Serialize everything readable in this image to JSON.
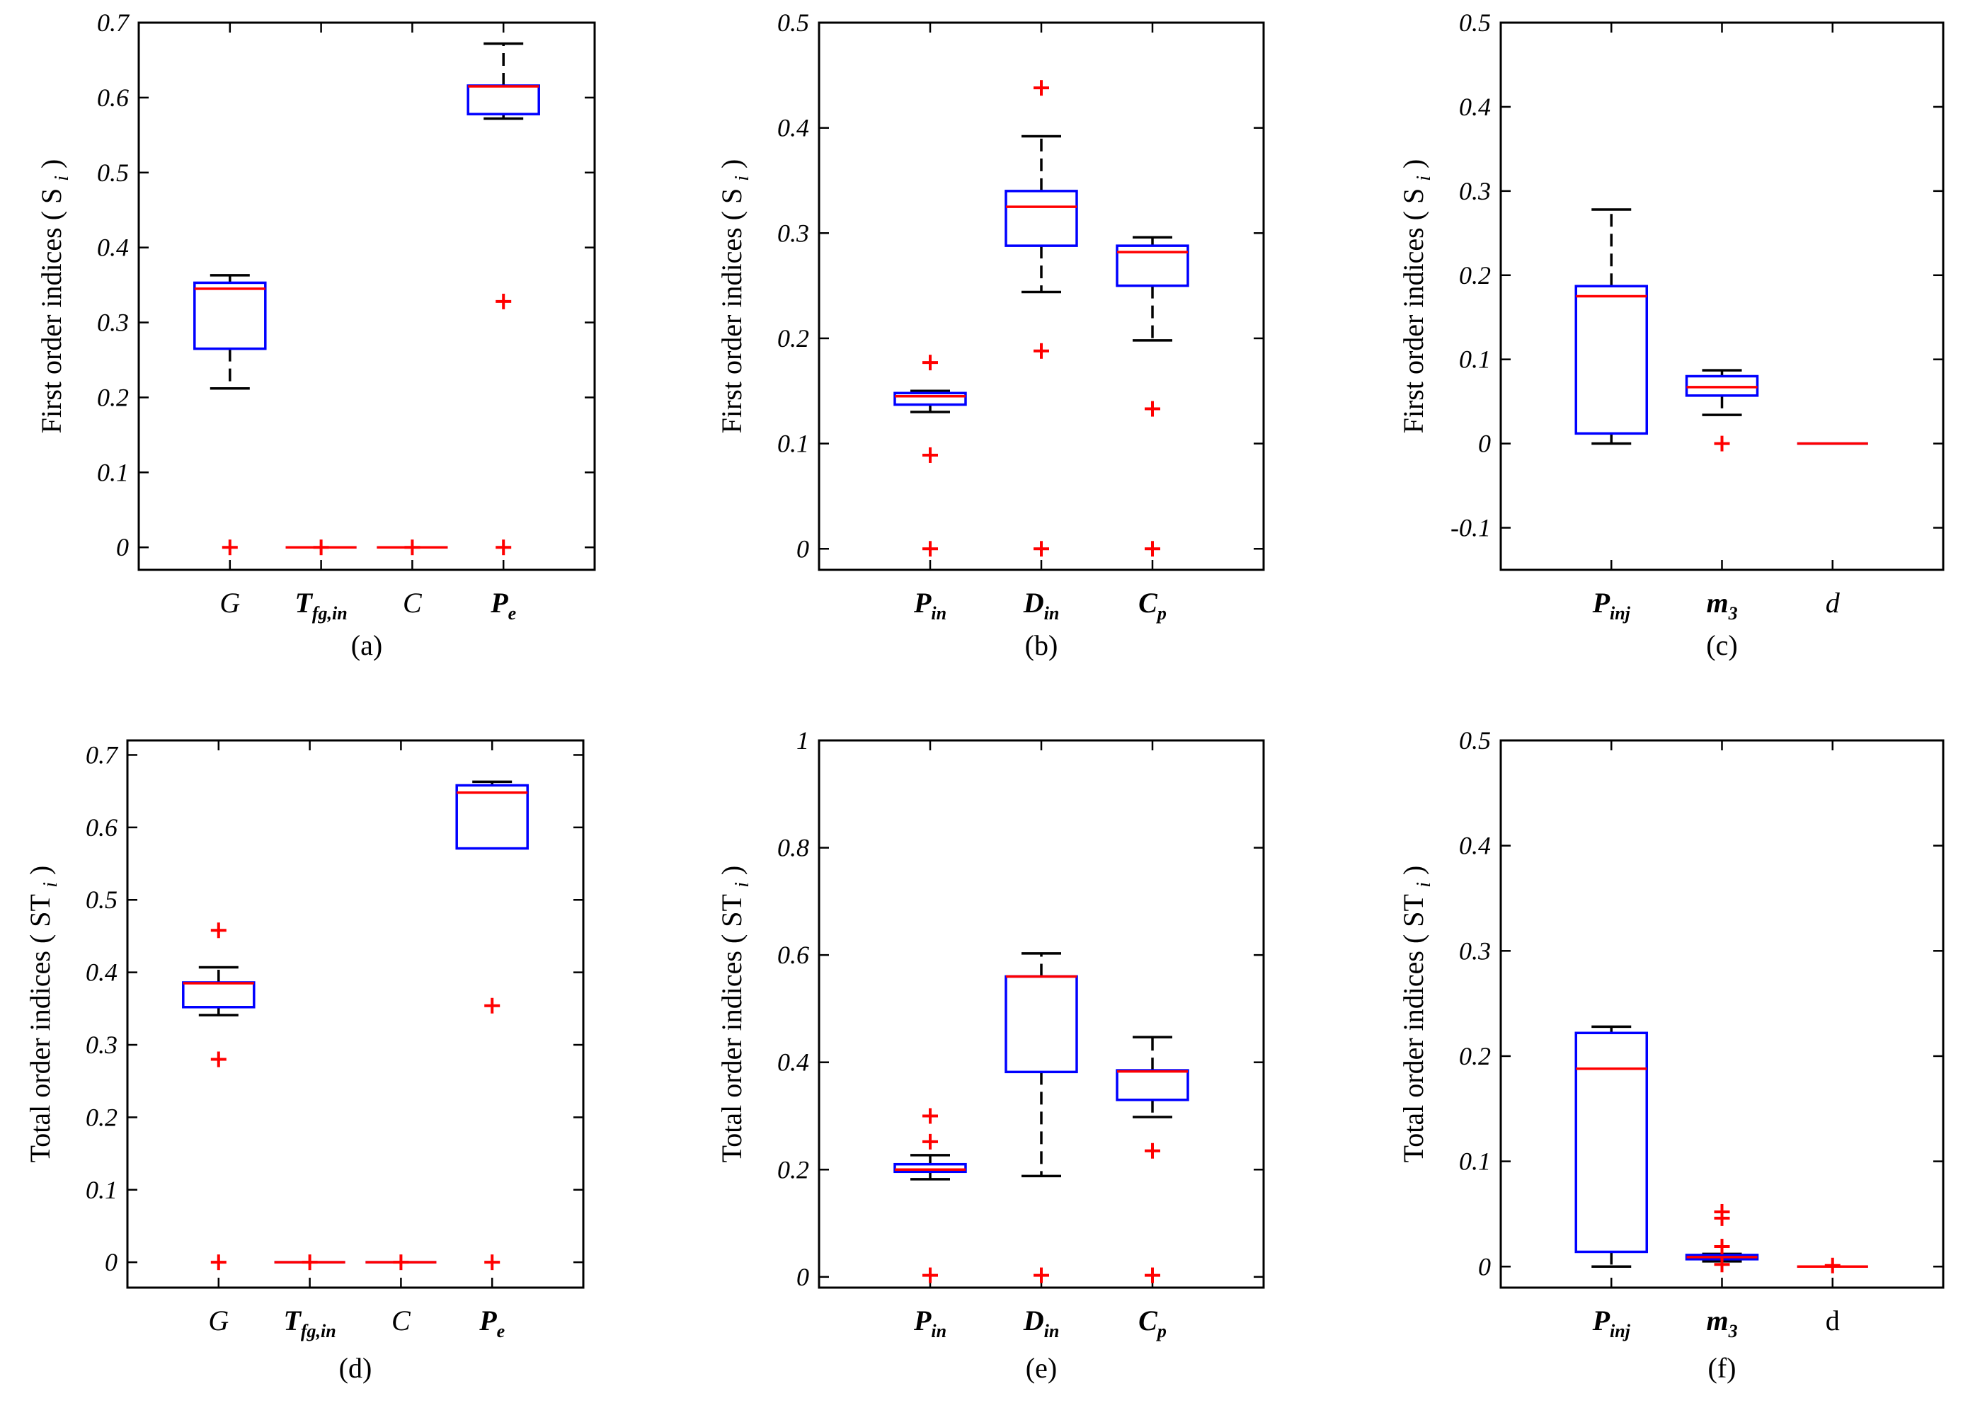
{
  "colors": {
    "box": "#0000ff",
    "median": "#ff0000",
    "whisker": "#000000",
    "outlier": "#ff0000",
    "axes": "#000000"
  },
  "chart_data": [
    {
      "type": "box",
      "caption": "(a)",
      "ylabel": "First order indices ( S",
      "ylabel_sub": "i",
      "ylabel_close": ")",
      "ylim": [
        -0.03,
        0.7
      ],
      "yticks": [
        0,
        0.1,
        0.2,
        0.3,
        0.4,
        0.5,
        0.6,
        0.7
      ],
      "ytick_labels": [
        "0",
        "0.1",
        "0.2",
        "0.3",
        "0.4",
        "0.5",
        "0.6",
        "0.7"
      ],
      "categories": [
        {
          "main": "G",
          "sub": "",
          "italic": true,
          "bold": false
        },
        {
          "main": "T",
          "sub": "fg,in",
          "italic": true,
          "bold": true
        },
        {
          "main": "C",
          "sub": "",
          "italic": true,
          "bold": false
        },
        {
          "main": "P",
          "sub": "e",
          "italic": true,
          "bold": true
        }
      ],
      "boxes": [
        {
          "q1": 0.265,
          "median": 0.345,
          "q3": 0.353,
          "whisker_low": 0.212,
          "whisker_high": 0.363,
          "outliers": [
            0
          ]
        },
        {
          "q1": 0,
          "median": 0,
          "q3": 0,
          "whisker_low": 0,
          "whisker_high": 0,
          "outliers": [
            0
          ]
        },
        {
          "q1": 0,
          "median": 0,
          "q3": 0,
          "whisker_low": 0,
          "whisker_high": 0,
          "outliers": [
            0
          ]
        },
        {
          "q1": 0.578,
          "median": 0.615,
          "q3": 0.616,
          "whisker_low": 0.572,
          "whisker_high": 0.672,
          "outliers": [
            0.328,
            0
          ]
        }
      ]
    },
    {
      "type": "box",
      "caption": "(b)",
      "ylabel": "First order indices ( S",
      "ylabel_sub": "i",
      "ylabel_close": ")",
      "ylim": [
        -0.02,
        0.5
      ],
      "yticks": [
        0,
        0.1,
        0.2,
        0.3,
        0.4,
        0.5
      ],
      "ytick_labels": [
        "0",
        "0.1",
        "0.2",
        "0.3",
        "0.4",
        "0.5"
      ],
      "categories": [
        {
          "main": "P",
          "sub": "in",
          "italic": true,
          "bold": true
        },
        {
          "main": "D",
          "sub": "in",
          "italic": true,
          "bold": true
        },
        {
          "main": "C",
          "sub": "p",
          "italic": true,
          "bold": true
        }
      ],
      "boxes": [
        {
          "q1": 0.137,
          "median": 0.145,
          "q3": 0.148,
          "whisker_low": 0.13,
          "whisker_high": 0.15,
          "outliers": [
            0.177,
            0.089,
            0
          ]
        },
        {
          "q1": 0.288,
          "median": 0.325,
          "q3": 0.34,
          "whisker_low": 0.244,
          "whisker_high": 0.392,
          "outliers": [
            0.438,
            0.188,
            0
          ]
        },
        {
          "q1": 0.25,
          "median": 0.282,
          "q3": 0.288,
          "whisker_low": 0.198,
          "whisker_high": 0.296,
          "outliers": [
            0.133,
            0
          ]
        }
      ]
    },
    {
      "type": "box",
      "caption": "(c)",
      "ylabel": "First order indices ( S",
      "ylabel_sub": "i",
      "ylabel_close": ")",
      "ylim": [
        -0.15,
        0.5
      ],
      "yticks": [
        -0.1,
        0,
        0.1,
        0.2,
        0.3,
        0.4,
        0.5
      ],
      "ytick_labels": [
        "-0.1",
        "0",
        "0.1",
        "0.2",
        "0.3",
        "0.4",
        "0.5"
      ],
      "categories": [
        {
          "main": "P",
          "sub": "inj",
          "italic": true,
          "bold": true
        },
        {
          "main": "m",
          "sub": "3",
          "italic": true,
          "bold": true
        },
        {
          "main": "d",
          "sub": "",
          "italic": true,
          "bold": false
        }
      ],
      "boxes": [
        {
          "q1": 0.012,
          "median": 0.175,
          "q3": 0.187,
          "whisker_low": 0,
          "whisker_high": 0.278,
          "outliers": []
        },
        {
          "q1": 0.057,
          "median": 0.067,
          "q3": 0.08,
          "whisker_low": 0.034,
          "whisker_high": 0.087,
          "outliers": [
            0
          ]
        },
        {
          "q1": 0,
          "median": 0,
          "q3": 0,
          "whisker_low": 0,
          "whisker_high": 0,
          "outliers": []
        }
      ]
    },
    {
      "type": "box",
      "caption": "(d)",
      "ylabel": "Total order indices ( ST",
      "ylabel_sub": "i",
      "ylabel_close": ")",
      "ylim": [
        -0.035,
        0.72
      ],
      "yticks": [
        0,
        0.1,
        0.2,
        0.3,
        0.4,
        0.5,
        0.6,
        0.7
      ],
      "ytick_labels": [
        "0",
        "0.1",
        "0.2",
        "0.3",
        "0.4",
        "0.5",
        "0.6",
        "0.7"
      ],
      "categories": [
        {
          "main": "G",
          "sub": "",
          "italic": true,
          "bold": false
        },
        {
          "main": "T",
          "sub": "fg,in",
          "italic": true,
          "bold": true
        },
        {
          "main": "C",
          "sub": "",
          "italic": true,
          "bold": false
        },
        {
          "main": "P",
          "sub": "e",
          "italic": true,
          "bold": true
        }
      ],
      "boxes": [
        {
          "q1": 0.352,
          "median": 0.385,
          "q3": 0.386,
          "whisker_low": 0.341,
          "whisker_high": 0.407,
          "outliers": [
            0.458,
            0.28,
            0
          ]
        },
        {
          "q1": 0,
          "median": 0,
          "q3": 0,
          "whisker_low": 0,
          "whisker_high": 0,
          "outliers": [
            0
          ]
        },
        {
          "q1": 0,
          "median": 0,
          "q3": 0,
          "whisker_low": 0,
          "whisker_high": 0,
          "outliers": [
            0
          ]
        },
        {
          "q1": 0.571,
          "median": 0.648,
          "q3": 0.658,
          "whisker_low": 0.571,
          "whisker_high": 0.663,
          "outliers": [
            0.354,
            0
          ]
        }
      ]
    },
    {
      "type": "box",
      "caption": "(e)",
      "ylabel": "Total order indices ( ST",
      "ylabel_sub": "i",
      "ylabel_close": ")",
      "ylim": [
        -0.02,
        1.0
      ],
      "yticks": [
        0,
        0.2,
        0.4,
        0.6,
        0.8,
        1
      ],
      "ytick_labels": [
        "0",
        "0.2",
        "0.4",
        "0.6",
        "0.8",
        "1"
      ],
      "categories": [
        {
          "main": "P",
          "sub": "in",
          "italic": true,
          "bold": true
        },
        {
          "main": "D",
          "sub": "in",
          "italic": true,
          "bold": true
        },
        {
          "main": "C",
          "sub": "p",
          "italic": true,
          "bold": true
        }
      ],
      "boxes": [
        {
          "q1": 0.196,
          "median": 0.2,
          "q3": 0.21,
          "whisker_low": 0.182,
          "whisker_high": 0.227,
          "outliers": [
            0.3,
            0.252,
            0.003
          ]
        },
        {
          "q1": 0.382,
          "median": 0.56,
          "q3": 0.56,
          "whisker_low": 0.188,
          "whisker_high": 0.603,
          "outliers": [
            0.003
          ]
        },
        {
          "q1": 0.33,
          "median": 0.383,
          "q3": 0.385,
          "whisker_low": 0.298,
          "whisker_high": 0.447,
          "outliers": [
            0.235,
            0.003
          ]
        }
      ]
    },
    {
      "type": "box",
      "caption": "(f)",
      "ylabel": "Total order indices ( ST",
      "ylabel_sub": "i",
      "ylabel_close": ")",
      "ylim": [
        -0.02,
        0.5
      ],
      "yticks": [
        0,
        0.1,
        0.2,
        0.3,
        0.4,
        0.5
      ],
      "ytick_labels": [
        "0",
        "0.1",
        "0.2",
        "0.3",
        "0.4",
        "0.5"
      ],
      "categories": [
        {
          "main": "P",
          "sub": "inj",
          "italic": true,
          "bold": true
        },
        {
          "main": "m",
          "sub": "3",
          "italic": true,
          "bold": true
        },
        {
          "main": "d",
          "sub": "",
          "italic": false,
          "bold": false
        }
      ],
      "boxes": [
        {
          "q1": 0.014,
          "median": 0.188,
          "q3": 0.222,
          "whisker_low": 0,
          "whisker_high": 0.228,
          "outliers": []
        },
        {
          "q1": 0.007,
          "median": 0.009,
          "q3": 0.011,
          "whisker_low": 0.005,
          "whisker_high": 0.012,
          "outliers": [
            0.052,
            0.046,
            0.019,
            0.002
          ]
        },
        {
          "q1": 0,
          "median": 0,
          "q3": 0,
          "whisker_low": 0,
          "whisker_high": 0,
          "outliers": [
            0.001
          ]
        }
      ]
    }
  ]
}
